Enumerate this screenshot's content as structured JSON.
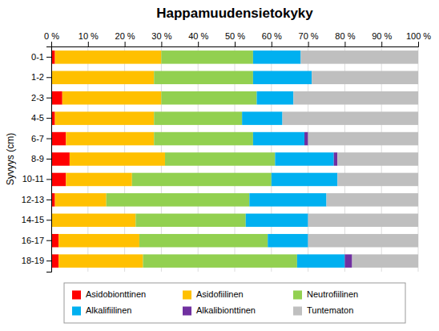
{
  "chart_data": {
    "type": "bar",
    "orientation": "horizontal",
    "stacked": true,
    "title": "Happamuudensietokyky",
    "ylabel": "Syvyys (cm)",
    "categories": [
      "0-1",
      "1-2",
      "2-3",
      "4-5",
      "6-7",
      "8-9",
      "10-11",
      "12-13",
      "14-15",
      "16-17",
      "18-19"
    ],
    "series": [
      {
        "name": "Asidobionttinen",
        "color": "#FF0000",
        "values": [
          1,
          0,
          3,
          1,
          4,
          5,
          4,
          1,
          0,
          2,
          2
        ]
      },
      {
        "name": "Asidofiilinen",
        "color": "#FFC000",
        "values": [
          29,
          28,
          27,
          27,
          24,
          26,
          18,
          14,
          23,
          22,
          23
        ]
      },
      {
        "name": "Neutrofiilinen",
        "color": "#92D050",
        "values": [
          25,
          27,
          26,
          24,
          27,
          30,
          38,
          39,
          30,
          35,
          42
        ]
      },
      {
        "name": "Alkalifiilinen",
        "color": "#00B0F0",
        "values": [
          13,
          16,
          10,
          11,
          14,
          16,
          18,
          21,
          17,
          11,
          13
        ]
      },
      {
        "name": "Alkalibionttinen",
        "color": "#7030A0",
        "values": [
          0,
          0,
          0,
          0,
          1,
          1,
          0,
          0,
          0,
          0,
          2
        ]
      },
      {
        "name": "Tuntematon",
        "color": "#BFBFBF",
        "values": [
          32,
          29,
          34,
          37,
          30,
          22,
          22,
          25,
          30,
          30,
          18
        ]
      }
    ],
    "xlim": [
      0,
      100
    ],
    "xticks": [
      {
        "value": 0,
        "label": "0 %"
      },
      {
        "value": 10,
        "label": "10 %"
      },
      {
        "value": 20,
        "label": "20 %"
      },
      {
        "value": 30,
        "label": "30 %"
      },
      {
        "value": 40,
        "label": "40 %"
      },
      {
        "value": 50,
        "label": "50 %"
      },
      {
        "value": 60,
        "label": "60 %"
      },
      {
        "value": 70,
        "label": "70 %"
      },
      {
        "value": 80,
        "label": "80 %"
      },
      {
        "value": 90,
        "label": "90 %"
      },
      {
        "value": 100,
        "label": "100 %"
      }
    ],
    "grid": true,
    "legend": "bottom"
  }
}
